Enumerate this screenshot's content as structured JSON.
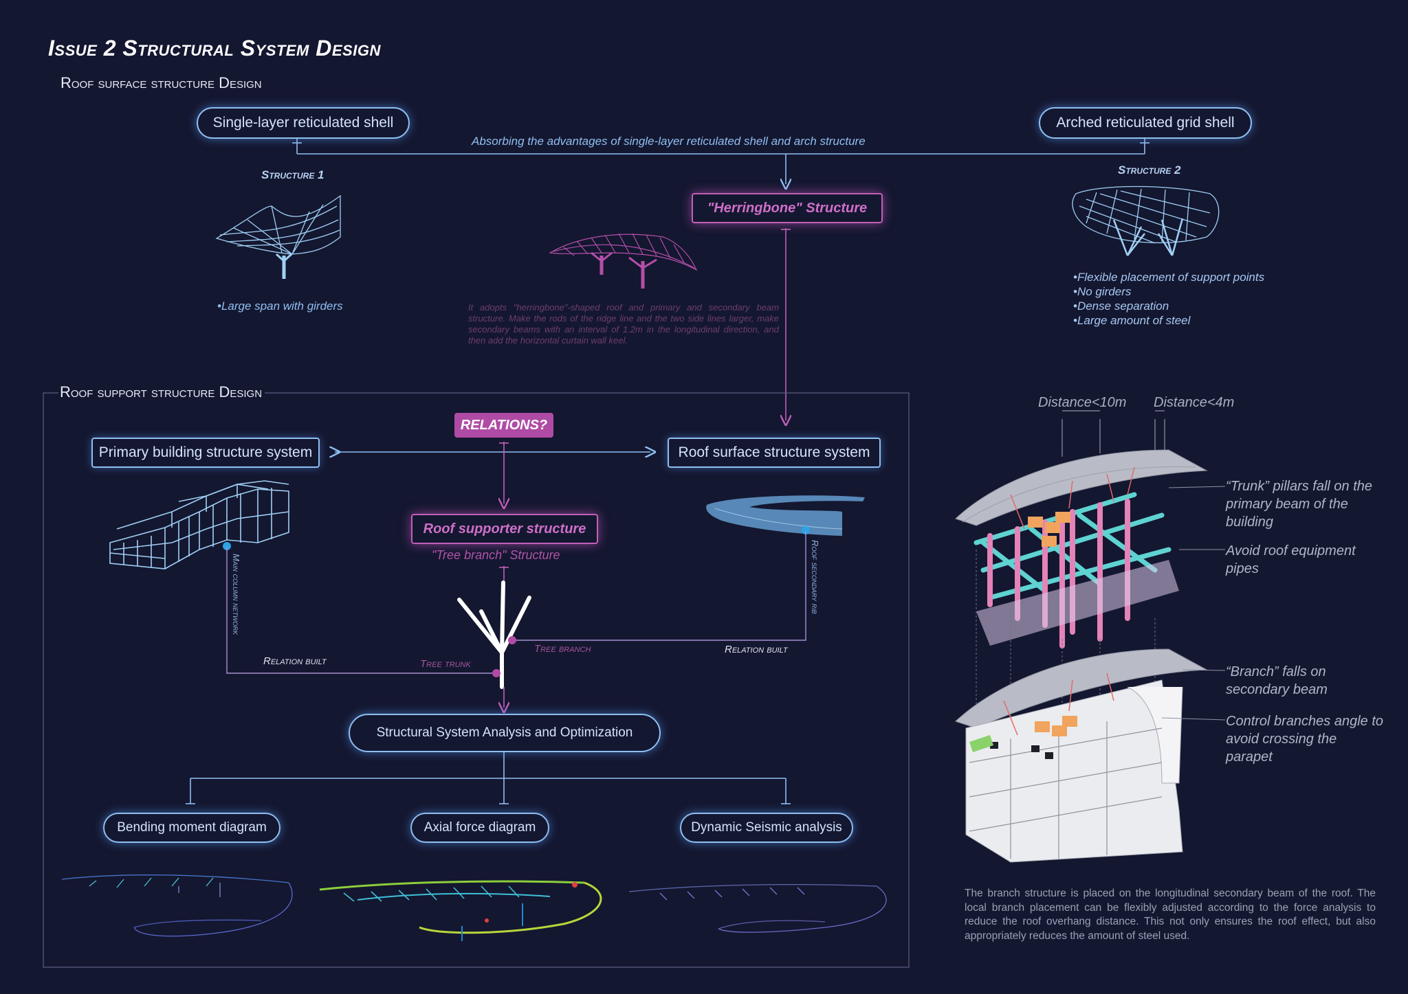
{
  "title": "Issue 2 Structural System Design",
  "roof_surface": {
    "heading": "Roof surface structure Design",
    "single_layer": "Single-layer reticulated shell",
    "arched_grid": "Arched reticulated grid shell",
    "absorbing_note": "Absorbing the advantages of single-layer reticulated shell and arch structure",
    "herringbone": "\"Herringbone\" Structure",
    "structure1_label": "Structure 1",
    "structure1_bullet": "•Large span with girders",
    "structure2_label": "Structure 2",
    "structure2_bullets": [
      "•Flexible placement of support points",
      "•No girders",
      "•Dense separation",
      "•Large amount of steel"
    ],
    "herringbone_desc": "It adopts \"herringbone\"-shaped roof and primary and secondary beam structure. Make the rods of the ridge line and the two side lines larger, make secondary beams with an interval of 1.2m in the longitudinal direction, and then add the horizontal curtain wall keel."
  },
  "roof_support": {
    "heading": "Roof support structure Design",
    "relations": "RELATIONS?",
    "primary_system": "Primary building structure system",
    "roof_system": "Roof surface structure system",
    "supporter": "Roof supporter structure",
    "tree_branch_structure": "\"Tree branch\" Structure",
    "main_column_network": "Main column network",
    "roof_secondary_rib": "Roof secondary rib",
    "relation_built_left": "Relation built",
    "relation_built_right": "Relation built",
    "tree_trunk": "Tree trunk",
    "tree_branch": "Tree branch",
    "analysis": "Structural System Analysis and Optimization",
    "bending": "Bending moment diagram",
    "axial": "Axial force diagram",
    "seismic": "Dynamic Seismic analysis"
  },
  "right_panel": {
    "distance1": "Distance<10m",
    "distance2": "Distance<4m",
    "annotations": [
      "“Trunk” pillars fall on the primary beam of the building",
      "Avoid roof equipment pipes",
      "“Branch” falls on secondary beam",
      "Control branches angle to avoid crossing the parapet"
    ],
    "description": "The branch structure is placed on the longitudinal secondary beam of the roof. The local branch placement can be flexibly adjusted according to the force analysis to reduce the roof overhang distance. This not only ensures the roof effect, but also appropriately reduces the amount of steel used."
  },
  "colors": {
    "background": "#141730",
    "blue_accent": "#8fbff2",
    "magenta_accent": "#c160b8",
    "dot_blue": "#2aa3e8",
    "dot_magenta": "#b04ba5"
  }
}
